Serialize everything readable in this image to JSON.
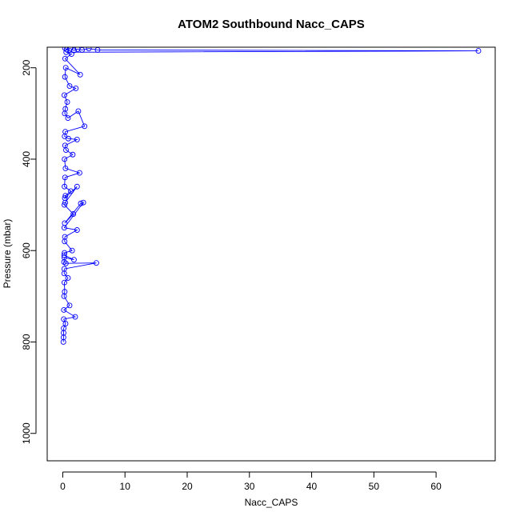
{
  "chart_data": {
    "type": "scatter",
    "title": "ATOM2 Southbound Nacc_CAPS",
    "xlabel": "Nacc_CAPS",
    "ylabel": "Pressure (mbar)",
    "xlim": [
      -2.5,
      69.5
    ],
    "ylim": [
      1060,
      155
    ],
    "y_axis_reversed": true,
    "x_ticks": [
      0,
      10,
      20,
      30,
      40,
      50,
      60
    ],
    "y_ticks": [
      200,
      400,
      600,
      800,
      1000
    ],
    "grid": false,
    "legend": "none",
    "marker": "open-circle",
    "line_connected": true,
    "color": "#0000ff",
    "series": [
      {
        "x": [
          0.35,
          0.62,
          1.2,
          1.8,
          2.4,
          3.1,
          4.2,
          5.6,
          66.8,
          0.55,
          1.4,
          0.38,
          2.8,
          0.48,
          0.35,
          1.1,
          2.1,
          0.26,
          0.72,
          0.42,
          0.32,
          0.84,
          2.5,
          3.5,
          0.41,
          0.3,
          0.9,
          2.3,
          0.37,
          0.52,
          1.6,
          0.29,
          0.44,
          2.7,
          0.36,
          0.28,
          1.3,
          0.43,
          0.33,
          2.3,
          0.39,
          0.27,
          1.7,
          0.31,
          2.9,
          3.3,
          0.25,
          2.3,
          0.34,
          0.3,
          1.5,
          0.28,
          0.22,
          1.8,
          0.24,
          0.21,
          0.5,
          5.4,
          0.24,
          0.23,
          0.84,
          0.26,
          0.31,
          0.21,
          1.1,
          0.18,
          2.0,
          0.16,
          0.45,
          0.15,
          0.14,
          0.12,
          0.1
        ],
        "y": [
          157,
          160,
          158,
          162,
          159,
          161,
          158,
          161,
          163,
          166,
          170,
          180,
          215,
          200,
          220,
          240,
          245,
          260,
          275,
          290,
          300,
          310,
          295,
          328,
          340,
          350,
          355,
          357,
          370,
          380,
          390,
          400,
          420,
          430,
          440,
          460,
          470,
          480,
          485,
          460,
          495,
          500,
          520,
          540,
          497,
          495,
          550,
          555,
          570,
          580,
          600,
          605,
          610,
          620,
          615,
          625,
          628,
          627,
          640,
          650,
          660,
          670,
          690,
          700,
          720,
          730,
          745,
          750,
          760,
          770,
          780,
          790,
          800
        ]
      }
    ]
  }
}
